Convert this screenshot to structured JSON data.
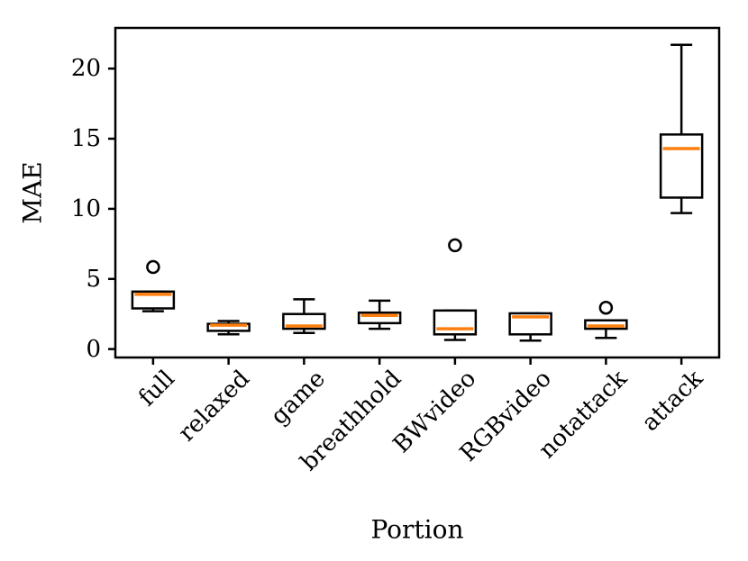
{
  "figure": {
    "background": "#ffffff",
    "text_color": "#000000"
  },
  "chart_data": {
    "type": "box",
    "title": "",
    "xlabel": "Portion",
    "ylabel": "MAE",
    "grid": false,
    "legend": "none",
    "categories": [
      "full",
      "relaxed",
      "game",
      "breathhold",
      "BWvideo",
      "RGBvideo",
      "notattack",
      "attack"
    ],
    "yticks": [
      0,
      5,
      10,
      15,
      20
    ],
    "ylim": [
      -0.6,
      22.9
    ],
    "median_color": "#ff7f0e",
    "box_edge_color": "#000000",
    "box_fill_color": "#ffffff",
    "boxes": [
      {
        "label": "full",
        "whislo": 2.7,
        "q1": 2.9,
        "med": 3.9,
        "q3": 4.1,
        "whishi": 4.1,
        "fliers": [
          5.85
        ]
      },
      {
        "label": "relaxed",
        "whislo": 1.05,
        "q1": 1.3,
        "med": 1.7,
        "q3": 1.8,
        "whishi": 2.0,
        "fliers": []
      },
      {
        "label": "game",
        "whislo": 1.15,
        "q1": 1.45,
        "med": 1.65,
        "q3": 2.5,
        "whishi": 3.55,
        "fliers": []
      },
      {
        "label": "breathhold",
        "whislo": 1.45,
        "q1": 1.85,
        "med": 2.4,
        "q3": 2.6,
        "whishi": 3.45,
        "fliers": []
      },
      {
        "label": "BWvideo",
        "whislo": 0.65,
        "q1": 1.05,
        "med": 1.45,
        "q3": 2.75,
        "whishi": 2.75,
        "fliers": [
          7.4
        ]
      },
      {
        "label": "RGBvideo",
        "whislo": 0.6,
        "q1": 1.05,
        "med": 2.3,
        "q3": 2.55,
        "whishi": 2.55,
        "fliers": []
      },
      {
        "label": "notattack",
        "whislo": 0.8,
        "q1": 1.45,
        "med": 1.65,
        "q3": 2.05,
        "whishi": 2.05,
        "fliers": [
          2.95
        ]
      },
      {
        "label": "attack",
        "whislo": 9.7,
        "q1": 10.8,
        "med": 14.3,
        "q3": 15.3,
        "whishi": 21.7,
        "fliers": []
      }
    ]
  }
}
